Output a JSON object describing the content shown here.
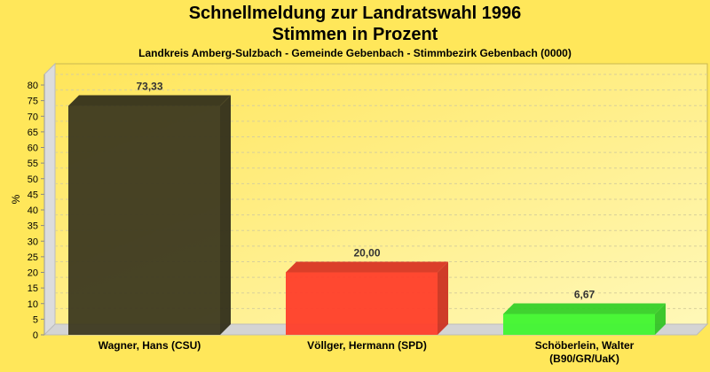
{
  "chart_data": {
    "type": "bar",
    "title": "Schnellmeldung zur Landratswahl 1996",
    "subtitle": "Stimmen in Prozent",
    "caption": "Landkreis Amberg-Sulzbach - Gemeinde Gebenbach - Stimmbezirk Gebenbach (0000)",
    "xlabel": "",
    "ylabel": "%",
    "ylim": [
      0,
      80
    ],
    "yticks": [
      "0",
      "5",
      "10",
      "15",
      "20",
      "25",
      "30",
      "35",
      "40",
      "45",
      "50",
      "55",
      "60",
      "65",
      "70",
      "75",
      "80"
    ],
    "grid": true,
    "categories": [
      [
        "Wagner, Hans (CSU)"
      ],
      [
        "Völlger, Hermann (SPD)"
      ],
      [
        "Schöberlein, Walter",
        "(B90/GR/UaK)"
      ]
    ],
    "values": [
      73.33,
      20.0,
      6.67
    ],
    "data_labels": [
      "73,33",
      "20,00",
      "6,67"
    ],
    "colors": [
      "#3d3920",
      "#ff3e2a",
      "#40f530"
    ]
  }
}
